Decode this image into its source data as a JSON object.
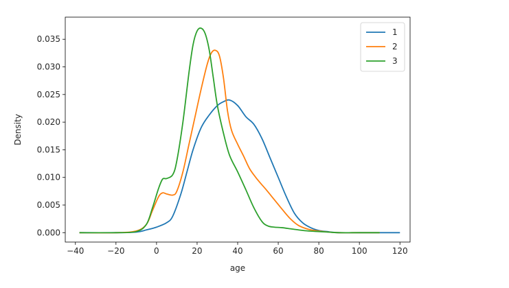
{
  "chart_data": {
    "type": "line",
    "title": "",
    "xlabel": "age",
    "ylabel": "Density",
    "xlim": [
      -45,
      125
    ],
    "ylim": [
      -0.0017,
      0.039
    ],
    "xticks": [
      -40,
      -20,
      0,
      20,
      40,
      60,
      80,
      100,
      120
    ],
    "xtick_labels": [
      "−40",
      "−20",
      "0",
      "20",
      "40",
      "60",
      "80",
      "100",
      "120"
    ],
    "yticks": [
      0.0,
      0.005,
      0.01,
      0.015,
      0.02,
      0.025,
      0.03,
      0.035
    ],
    "ytick_labels": [
      "0.000",
      "0.005",
      "0.010",
      "0.015",
      "0.020",
      "0.025",
      "0.030",
      "0.035"
    ],
    "grid": false,
    "legend_position": "top-right",
    "series": [
      {
        "name": "1",
        "color": "#1f77b4",
        "x": [
          -38,
          -20,
          -10,
          -5,
          0,
          5,
          8,
          12,
          15,
          18,
          22,
          26,
          30,
          33,
          36,
          40,
          44,
          48,
          52,
          56,
          60,
          64,
          68,
          72,
          76,
          80,
          84,
          90,
          100,
          110,
          120
        ],
        "y": [
          0.0,
          0.0,
          0.0001,
          0.0005,
          0.001,
          0.0018,
          0.003,
          0.007,
          0.011,
          0.015,
          0.019,
          0.0213,
          0.023,
          0.0237,
          0.024,
          0.023,
          0.021,
          0.0196,
          0.017,
          0.0135,
          0.01,
          0.0065,
          0.0035,
          0.0018,
          0.0009,
          0.0004,
          0.0002,
          0.0,
          0.0,
          0.0,
          0.0
        ]
      },
      {
        "name": "2",
        "color": "#ff7f0e",
        "x": [
          -38,
          -20,
          -10,
          -5,
          -2,
          1,
          3,
          5,
          8,
          10,
          13,
          16,
          19,
          22,
          25,
          27,
          29,
          31,
          33,
          35,
          37,
          40,
          43,
          46,
          50,
          54,
          58,
          62,
          66,
          70,
          75,
          80,
          85,
          90,
          100,
          110
        ],
        "y": [
          0.0,
          0.0,
          0.0003,
          0.0015,
          0.004,
          0.0065,
          0.0072,
          0.007,
          0.0068,
          0.0075,
          0.011,
          0.016,
          0.021,
          0.026,
          0.0305,
          0.0325,
          0.033,
          0.032,
          0.028,
          0.022,
          0.0185,
          0.016,
          0.0138,
          0.0115,
          0.0095,
          0.0078,
          0.006,
          0.0042,
          0.0025,
          0.0013,
          0.0006,
          0.0003,
          0.0001,
          0.0,
          0.0,
          0.0
        ]
      },
      {
        "name": "3",
        "color": "#2ca02c",
        "x": [
          -38,
          -20,
          -10,
          -5,
          -2,
          1,
          3,
          5,
          8,
          10,
          13,
          16,
          18,
          20,
          22,
          24,
          26,
          28,
          30,
          33,
          36,
          40,
          44,
          48,
          52,
          55,
          58,
          62,
          66,
          70,
          75,
          80,
          85,
          90,
          100,
          110
        ],
        "y": [
          0.0,
          0.0,
          0.0002,
          0.0015,
          0.0045,
          0.008,
          0.0097,
          0.0098,
          0.0105,
          0.013,
          0.02,
          0.029,
          0.034,
          0.0365,
          0.037,
          0.036,
          0.033,
          0.028,
          0.023,
          0.018,
          0.014,
          0.011,
          0.0078,
          0.0045,
          0.002,
          0.0012,
          0.001,
          0.0009,
          0.0007,
          0.0005,
          0.0003,
          0.0002,
          0.0001,
          0.0,
          0.0,
          0.0
        ]
      }
    ]
  }
}
